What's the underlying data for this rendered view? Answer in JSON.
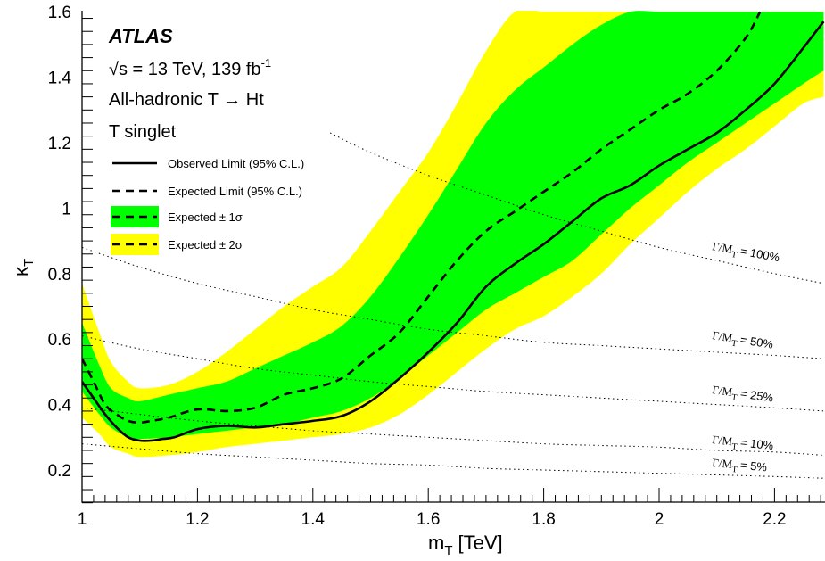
{
  "chart_data": {
    "type": "line",
    "xlabel": "m",
    "xlabel_sub": "T",
    "xlabel_unit": "[TeV]",
    "ylabel": "κ",
    "ylabel_sub": "T",
    "xlim": [
      1.0,
      2.285
    ],
    "ylim": [
      0.1,
      1.6
    ],
    "x_ticks": [
      "1",
      "1.2",
      "1.4",
      "1.6",
      "1.8",
      "2",
      "2.2"
    ],
    "y_ticks": [
      "0.2",
      "0.4",
      "0.6",
      "0.8",
      "1",
      "1.2",
      "1.4",
      "1.6"
    ],
    "grid": false,
    "legend_placement": "top-left",
    "annotations": {
      "experiment": "ATLAS",
      "energy": "√s = 13 TeV, 139 fb",
      "lumi_exp": "-1",
      "channel": "All-hadronic T → Ht",
      "model": "T singlet"
    },
    "series": [
      {
        "name": "Observed Limit (95% C.L.)",
        "color": "#000000",
        "style": "solid",
        "x": [
          1.0,
          1.02,
          1.04,
          1.06,
          1.08,
          1.1,
          1.12,
          1.14,
          1.16,
          1.2,
          1.25,
          1.3,
          1.35,
          1.4,
          1.45,
          1.5,
          1.55,
          1.6,
          1.65,
          1.7,
          1.75,
          1.8,
          1.85,
          1.9,
          1.95,
          2.0,
          2.05,
          2.1,
          2.15,
          2.2,
          2.25,
          2.285
        ],
        "y": [
          0.47,
          0.42,
          0.37,
          0.33,
          0.3,
          0.29,
          0.29,
          0.295,
          0.3,
          0.325,
          0.335,
          0.33,
          0.34,
          0.35,
          0.365,
          0.41,
          0.48,
          0.56,
          0.65,
          0.76,
          0.83,
          0.89,
          0.96,
          1.03,
          1.07,
          1.13,
          1.18,
          1.23,
          1.3,
          1.38,
          1.49,
          1.57
        ]
      },
      {
        "name": "Expected Limit (95% C.L.)",
        "color": "#000000",
        "style": "dashed",
        "x": [
          1.0,
          1.02,
          1.04,
          1.06,
          1.08,
          1.1,
          1.12,
          1.15,
          1.2,
          1.25,
          1.3,
          1.35,
          1.4,
          1.45,
          1.5,
          1.55,
          1.6,
          1.65,
          1.7,
          1.75,
          1.8,
          1.85,
          1.9,
          1.95,
          2.0,
          2.05,
          2.1,
          2.15,
          2.175
        ],
        "y": [
          0.54,
          0.47,
          0.4,
          0.37,
          0.35,
          0.345,
          0.35,
          0.36,
          0.385,
          0.38,
          0.39,
          0.43,
          0.45,
          0.48,
          0.55,
          0.62,
          0.73,
          0.84,
          0.93,
          0.99,
          1.05,
          1.11,
          1.18,
          1.24,
          1.3,
          1.35,
          1.42,
          1.52,
          1.6
        ]
      }
    ],
    "bands": [
      {
        "name": "Expected ± 2σ",
        "color": "#ffff00",
        "x": [
          1.0,
          1.03,
          1.05,
          1.08,
          1.1,
          1.15,
          1.2,
          1.25,
          1.3,
          1.35,
          1.4,
          1.45,
          1.5,
          1.55,
          1.6,
          1.65,
          1.7,
          1.75,
          1.8,
          1.85,
          1.9,
          1.95,
          2.0,
          2.05,
          2.1,
          2.15,
          2.2,
          2.25,
          2.285
        ],
        "upper": [
          0.77,
          0.62,
          0.53,
          0.47,
          0.45,
          0.46,
          0.5,
          0.56,
          0.63,
          0.7,
          0.76,
          0.82,
          0.93,
          1.05,
          1.17,
          1.32,
          1.48,
          1.6,
          1.6,
          1.6,
          1.6,
          1.6,
          1.6,
          1.6,
          1.6,
          1.6,
          1.6,
          1.6,
          1.6
        ],
        "lower": [
          0.36,
          0.31,
          0.27,
          0.25,
          0.24,
          0.245,
          0.255,
          0.27,
          0.28,
          0.29,
          0.3,
          0.31,
          0.33,
          0.37,
          0.43,
          0.5,
          0.57,
          0.63,
          0.67,
          0.73,
          0.8,
          0.89,
          0.97,
          1.05,
          1.12,
          1.18,
          1.25,
          1.32,
          1.34
        ]
      },
      {
        "name": "Expected ± 1σ",
        "color": "#00ff00",
        "x": [
          1.0,
          1.03,
          1.05,
          1.08,
          1.1,
          1.15,
          1.2,
          1.25,
          1.3,
          1.35,
          1.4,
          1.45,
          1.5,
          1.55,
          1.6,
          1.65,
          1.7,
          1.75,
          1.8,
          1.85,
          1.9,
          1.95,
          2.0,
          2.05,
          2.1,
          2.15,
          2.2,
          2.25,
          2.285
        ],
        "upper": [
          0.65,
          0.52,
          0.45,
          0.42,
          0.41,
          0.43,
          0.45,
          0.47,
          0.51,
          0.55,
          0.59,
          0.64,
          0.73,
          0.85,
          0.98,
          1.12,
          1.26,
          1.36,
          1.43,
          1.5,
          1.56,
          1.6,
          1.6,
          1.6,
          1.6,
          1.6,
          1.6,
          1.6,
          1.6
        ],
        "lower": [
          0.44,
          0.37,
          0.33,
          0.3,
          0.295,
          0.3,
          0.31,
          0.32,
          0.33,
          0.34,
          0.36,
          0.38,
          0.42,
          0.48,
          0.55,
          0.62,
          0.69,
          0.74,
          0.79,
          0.84,
          0.92,
          1.0,
          1.07,
          1.14,
          1.2,
          1.26,
          1.32,
          1.38,
          1.42
        ]
      }
    ],
    "width_curves": [
      {
        "label": "Γ/M",
        "label_sub": "T",
        "value": "= 100%",
        "x": [
          1.43,
          1.5,
          1.6,
          1.7,
          1.8,
          1.9,
          2.0,
          2.1,
          2.2,
          2.285
        ],
        "y": [
          1.23,
          1.17,
          1.1,
          1.04,
          0.98,
          0.93,
          0.88,
          0.84,
          0.8,
          0.77
        ]
      },
      {
        "label": "Γ/M",
        "label_sub": "T",
        "value": "= 50%",
        "x": [
          1.0,
          1.1,
          1.2,
          1.3,
          1.4,
          1.5,
          1.6,
          1.7,
          1.8,
          1.9,
          2.0,
          2.1,
          2.2,
          2.285
        ],
        "y": [
          0.88,
          0.82,
          0.77,
          0.73,
          0.69,
          0.66,
          0.63,
          0.61,
          0.59,
          0.58,
          0.57,
          0.56,
          0.55,
          0.54
        ]
      },
      {
        "label": "Γ/M",
        "label_sub": "T",
        "value": "= 25%",
        "x": [
          1.0,
          1.1,
          1.2,
          1.3,
          1.4,
          1.5,
          1.6,
          1.7,
          1.8,
          1.9,
          2.0,
          2.1,
          2.2,
          2.285
        ],
        "y": [
          0.61,
          0.57,
          0.54,
          0.51,
          0.49,
          0.47,
          0.455,
          0.44,
          0.43,
          0.42,
          0.41,
          0.4,
          0.39,
          0.38
        ]
      },
      {
        "label": "Γ/M",
        "label_sub": "T",
        "value": "= 10%",
        "x": [
          1.0,
          1.1,
          1.2,
          1.3,
          1.4,
          1.5,
          1.6,
          1.7,
          1.8,
          1.9,
          2.0,
          2.1,
          2.2,
          2.285
        ],
        "y": [
          0.39,
          0.37,
          0.35,
          0.335,
          0.32,
          0.31,
          0.3,
          0.29,
          0.28,
          0.275,
          0.27,
          0.26,
          0.255,
          0.245
        ]
      },
      {
        "label": "Γ/M",
        "label_sub": "T",
        "value": "= 5%",
        "x": [
          1.0,
          1.1,
          1.2,
          1.3,
          1.4,
          1.5,
          1.6,
          1.7,
          1.8,
          1.9,
          2.0,
          2.1,
          2.2,
          2.285
        ],
        "y": [
          0.28,
          0.265,
          0.25,
          0.24,
          0.23,
          0.22,
          0.215,
          0.205,
          0.2,
          0.195,
          0.19,
          0.185,
          0.18,
          0.175
        ]
      }
    ],
    "legend": [
      {
        "label": "Observed Limit (95% C.L.)",
        "line": "solid",
        "fill": ""
      },
      {
        "label": "Expected Limit (95% C.L.)",
        "line": "dashed",
        "fill": ""
      },
      {
        "label": "Expected ± 1σ",
        "line": "dashed",
        "fill": "#00ff00"
      },
      {
        "label": "Expected ± 2σ",
        "line": "dashed",
        "fill": "#ffff00"
      }
    ]
  }
}
